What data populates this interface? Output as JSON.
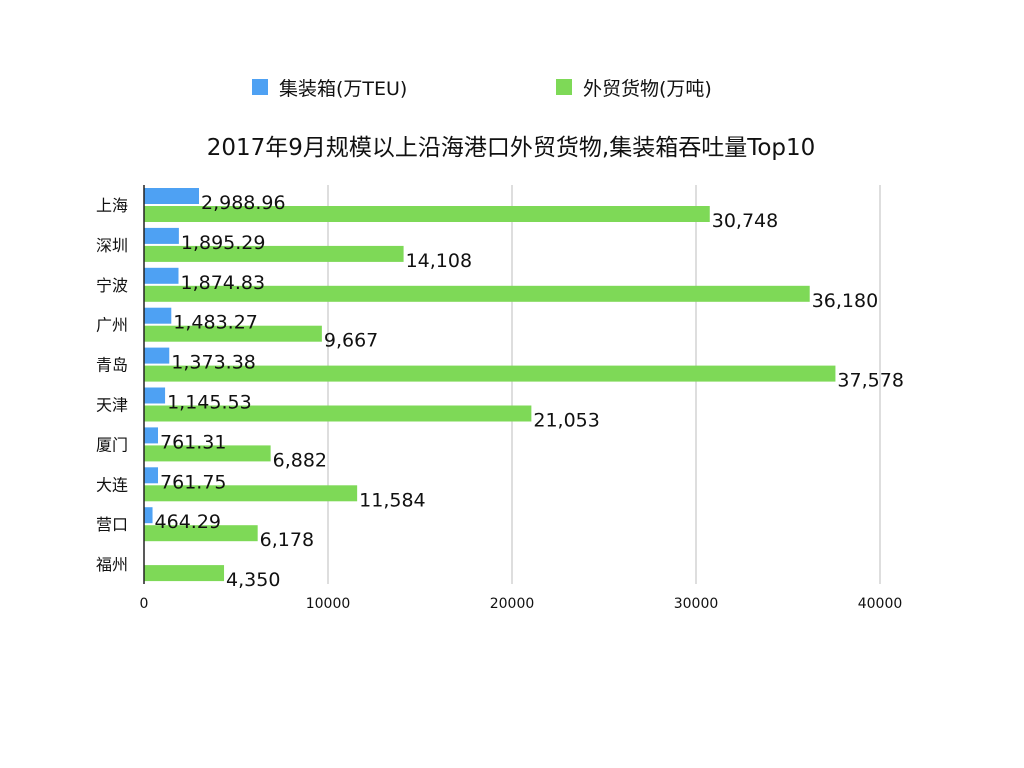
{
  "chart_data": {
    "type": "bar",
    "orientation": "horizontal",
    "title": "2017年9月规模以上沿海港口外贸货物,集装箱吞吐量Top10",
    "categories": [
      "上海",
      "深圳",
      "宁波",
      "广州",
      "青岛",
      "天津",
      "厦门",
      "大连",
      "营口",
      "福州"
    ],
    "series": [
      {
        "name": "集装箱(万TEU)",
        "color": "#4ea1f3",
        "values": [
          2988.96,
          1895.29,
          1874.83,
          1483.27,
          1373.38,
          1145.53,
          761.31,
          761.75,
          464.29,
          null
        ],
        "labels": [
          "2,988.96",
          "1,895.29",
          "1,874.83",
          "1,483.27",
          "1,373.38",
          "1,145.53",
          "761.31",
          "761.75",
          "464.29",
          ""
        ]
      },
      {
        "name": "外贸货物(万吨)",
        "color": "#7ed957",
        "values": [
          30748,
          14108,
          36180,
          9667,
          37578,
          21053,
          6882,
          11584,
          6178,
          4350
        ],
        "labels": [
          "30,748",
          "14,108",
          "36,180",
          "9,667",
          "37,578",
          "21,053",
          "6,882",
          "11,584",
          "6,178",
          "4,350"
        ]
      }
    ],
    "xlim": [
      0,
      40000
    ],
    "xticks": [
      "0",
      "10000",
      "20000",
      "30000",
      "40000"
    ],
    "grid": true,
    "legend": "top"
  }
}
